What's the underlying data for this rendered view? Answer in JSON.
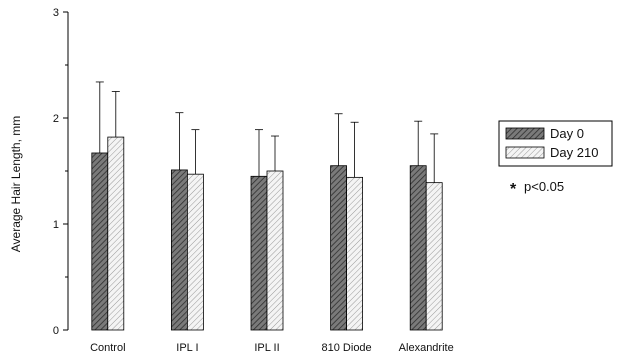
{
  "chart_data": {
    "type": "bar",
    "categories": [
      "Control",
      "IPL I",
      "IPL II",
      "810 Diode",
      "Alexandrite"
    ],
    "series": [
      {
        "name": "Day 0",
        "values": [
          1.67,
          1.51,
          1.45,
          1.55,
          1.55
        ],
        "error": [
          0.67,
          0.54,
          0.44,
          0.49,
          0.42
        ],
        "fill": "#666666",
        "pattern": "dense-diagonal"
      },
      {
        "name": "Day 210",
        "values": [
          1.82,
          1.47,
          1.5,
          1.44,
          1.39
        ],
        "error": [
          0.43,
          0.42,
          0.33,
          0.52,
          0.46
        ],
        "fill": "#e8e8e8",
        "pattern": "light-diagonal"
      }
    ],
    "ylabel": "Average Hair Length, mm",
    "xlabel": "",
    "ylim": [
      0,
      3
    ],
    "yticks": [
      0,
      1,
      2,
      3
    ],
    "legend_position": "right",
    "annotation": "p<0.05",
    "annotation_icon": "asterisk-icon",
    "grid": false
  }
}
